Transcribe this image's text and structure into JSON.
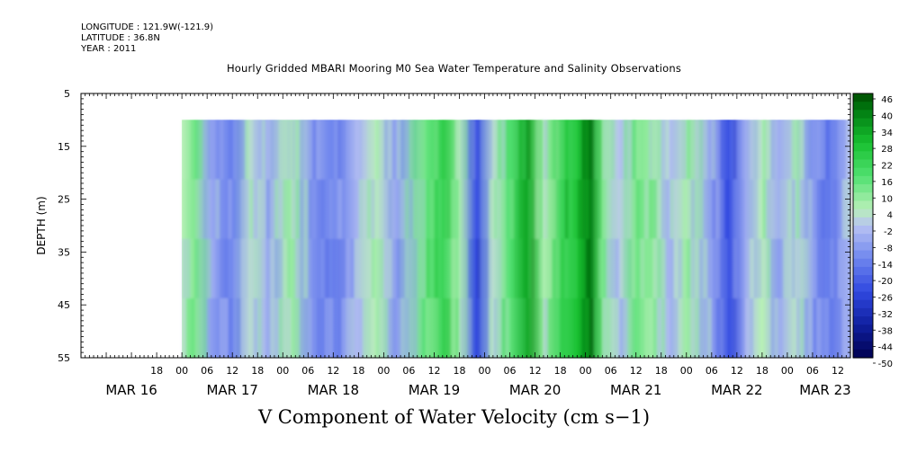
{
  "header": {
    "longitude": "LONGITUDE : 121.9W(-121.9)",
    "latitude": "LATITUDE : 36.8N",
    "year": "YEAR : 2011"
  },
  "chart_data": {
    "type": "heatmap",
    "title": "Hourly Gridded MBARI Mooring M0 Sea Water Temperature and Salinity Observations",
    "xlabel": "V Component of Water Velocity (cm s−1)",
    "ylabel": "DEPTH (m)",
    "ylim": [
      55,
      5
    ],
    "y_inverted": true,
    "data_depth_range": [
      10,
      55
    ],
    "x_range_hours": [
      0,
      183
    ],
    "y_ticks": [
      "5",
      "15",
      "25",
      "35",
      "45",
      "55"
    ],
    "x_hour_ticks": [
      {
        "t": 18,
        "label": "18"
      },
      {
        "t": 24,
        "label": "00"
      },
      {
        "t": 30,
        "label": "06"
      },
      {
        "t": 36,
        "label": "12"
      },
      {
        "t": 42,
        "label": "18"
      },
      {
        "t": 48,
        "label": "00"
      },
      {
        "t": 54,
        "label": "06"
      },
      {
        "t": 60,
        "label": "12"
      },
      {
        "t": 66,
        "label": "18"
      },
      {
        "t": 72,
        "label": "00"
      },
      {
        "t": 78,
        "label": "06"
      },
      {
        "t": 84,
        "label": "12"
      },
      {
        "t": 90,
        "label": "18"
      },
      {
        "t": 96,
        "label": "00"
      },
      {
        "t": 102,
        "label": "06"
      },
      {
        "t": 108,
        "label": "12"
      },
      {
        "t": 114,
        "label": "18"
      },
      {
        "t": 120,
        "label": "00"
      },
      {
        "t": 126,
        "label": "06"
      },
      {
        "t": 132,
        "label": "12"
      },
      {
        "t": 138,
        "label": "18"
      },
      {
        "t": 144,
        "label": "00"
      },
      {
        "t": 150,
        "label": "06"
      },
      {
        "t": 156,
        "label": "12"
      },
      {
        "t": 162,
        "label": "18"
      },
      {
        "t": 168,
        "label": "00"
      },
      {
        "t": 174,
        "label": "06"
      },
      {
        "t": 180,
        "label": "12"
      }
    ],
    "date_labels": [
      {
        "t": 12,
        "label": "MAR 16"
      },
      {
        "t": 36,
        "label": "MAR 17"
      },
      {
        "t": 60,
        "label": "MAR 18"
      },
      {
        "t": 84,
        "label": "MAR 19"
      },
      {
        "t": 108,
        "label": "MAR 20"
      },
      {
        "t": 132,
        "label": "MAR 21"
      },
      {
        "t": 156,
        "label": "MAR 22"
      },
      {
        "t": 177,
        "label": "MAR 23"
      }
    ],
    "colorbar": {
      "labels": [
        "46",
        "40",
        "34",
        "28",
        "22",
        "16",
        "10",
        "4",
        "-2",
        "-8",
        "-14",
        "-20",
        "-26",
        "-32",
        "-38",
        "-44",
        "-50"
      ],
      "range": [
        -50,
        46
      ]
    },
    "bands": [
      {
        "t": 24,
        "v": 4
      },
      {
        "t": 27,
        "v": 12
      },
      {
        "t": 31,
        "v": -8
      },
      {
        "t": 36,
        "v": -14
      },
      {
        "t": 40,
        "v": 2
      },
      {
        "t": 44,
        "v": -6
      },
      {
        "t": 50,
        "v": 6
      },
      {
        "t": 55,
        "v": -10
      },
      {
        "t": 60,
        "v": -14
      },
      {
        "t": 66,
        "v": -4
      },
      {
        "t": 70,
        "v": 4
      },
      {
        "t": 75,
        "v": -8
      },
      {
        "t": 82,
        "v": 14
      },
      {
        "t": 86,
        "v": 22
      },
      {
        "t": 90,
        "v": 6
      },
      {
        "t": 94,
        "v": -26
      },
      {
        "t": 98,
        "v": 2
      },
      {
        "t": 102,
        "v": 16
      },
      {
        "t": 106,
        "v": 34
      },
      {
        "t": 110,
        "v": 4
      },
      {
        "t": 114,
        "v": 22
      },
      {
        "t": 118,
        "v": 28
      },
      {
        "t": 121,
        "v": 40
      },
      {
        "t": 124,
        "v": 10
      },
      {
        "t": 128,
        "v": -2
      },
      {
        "t": 132,
        "v": 12
      },
      {
        "t": 136,
        "v": 8
      },
      {
        "t": 140,
        "v": -2
      },
      {
        "t": 144,
        "v": 6
      },
      {
        "t": 150,
        "v": -8
      },
      {
        "t": 154,
        "v": -26
      },
      {
        "t": 158,
        "v": -4
      },
      {
        "t": 162,
        "v": 4
      },
      {
        "t": 166,
        "v": -8
      },
      {
        "t": 170,
        "v": 2
      },
      {
        "t": 174,
        "v": -10
      },
      {
        "t": 178,
        "v": -16
      },
      {
        "t": 182,
        "v": -4
      }
    ],
    "data_time_range": [
      24,
      183
    ]
  },
  "colors": {
    "high": "#004d00",
    "mid_green": "#2ecc40",
    "zero_green": "#b5f0b5",
    "zero_blue": "#c0c8f0",
    "mid_blue": "#4a5fe0",
    "low": "#000060"
  }
}
